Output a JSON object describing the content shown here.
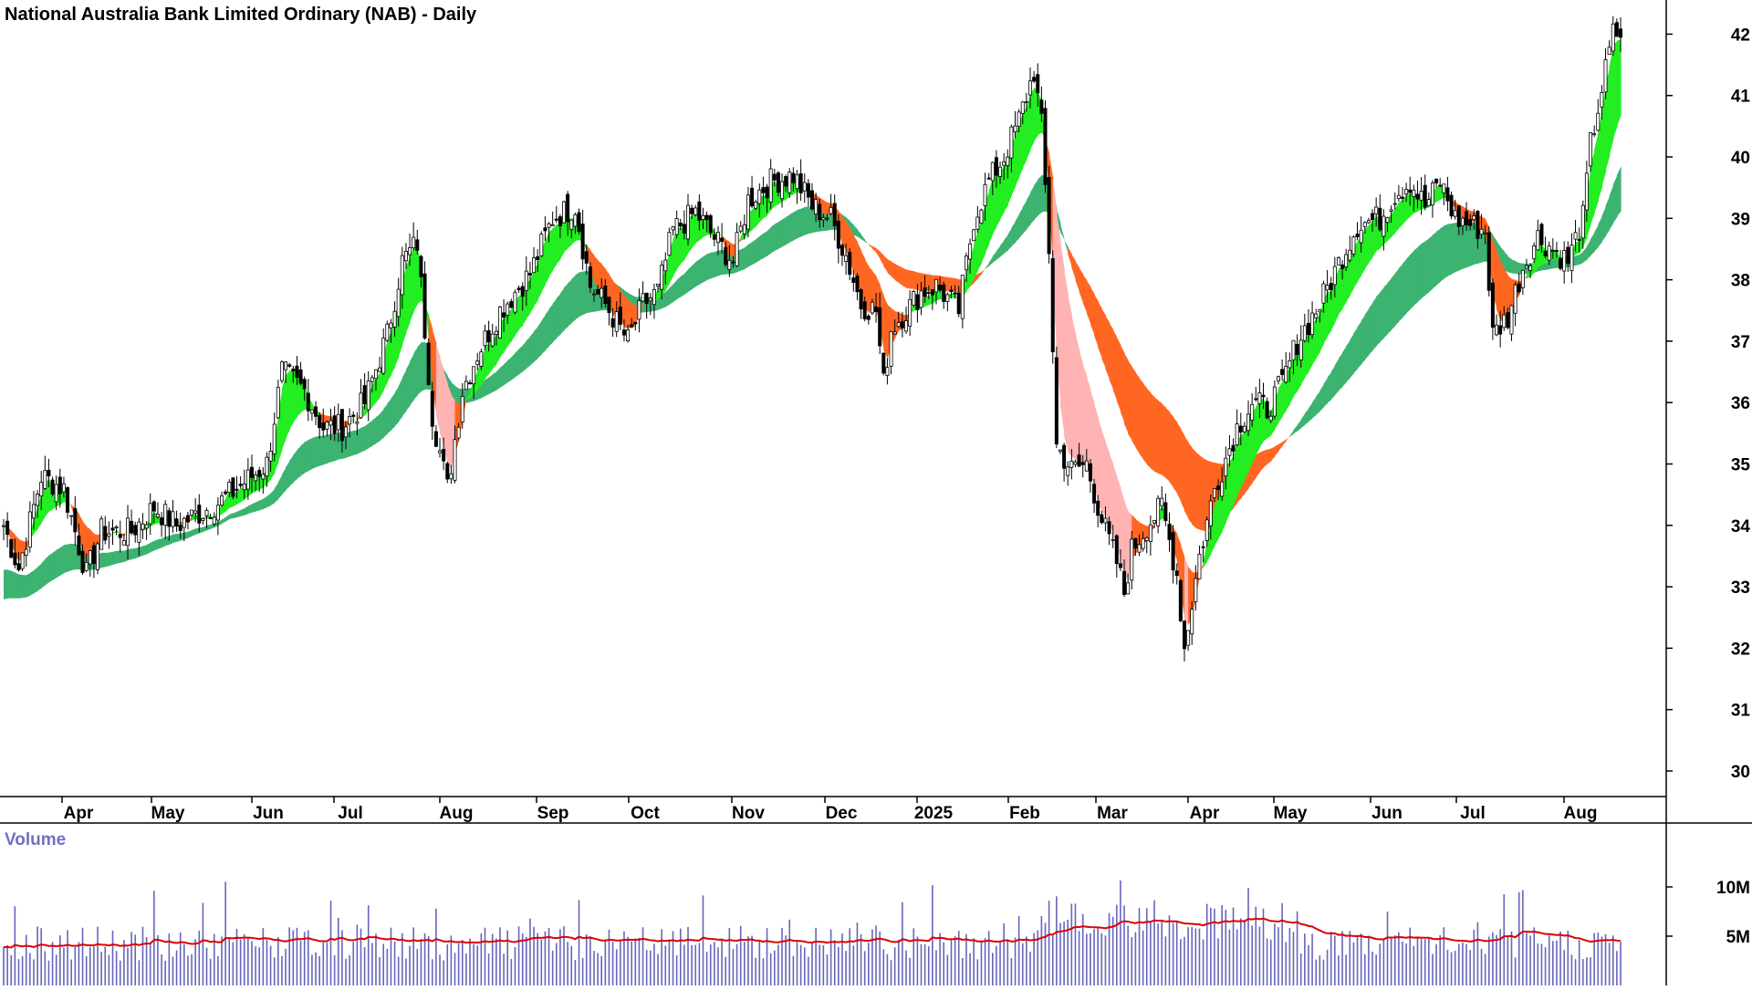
{
  "chart_title": "National Australia Bank Limited Ordinary (NAB) - Daily",
  "volume_label": "Volume",
  "colors": {
    "background": "#ffffff",
    "short_band_up": "#22ee22",
    "short_band_down": "#ff6622",
    "short_band_down_light": "#ffb3b3",
    "long_band_up": "#3cb371",
    "long_band_down": "#ff6622",
    "candle": "#000000",
    "volume_bars": "#6666bb",
    "volume_average": "#dd0000"
  },
  "chart_data": [
    {
      "type": "candlestick",
      "title": "National Australia Bank Limited Ordinary (NAB) - Daily",
      "ylim": [
        29.6,
        42.6
      ],
      "y_ticks": [
        30,
        31,
        32,
        33,
        34,
        35,
        36,
        37,
        38,
        39,
        40,
        41,
        42
      ],
      "x_ticks": [
        "Apr",
        "May",
        "Jun",
        "Jul",
        "Aug",
        "Sep",
        "Oct",
        "Nov",
        "Dec",
        "2025",
        "Feb",
        "Mar",
        "Apr",
        "May",
        "Jun",
        "Jul",
        "Aug"
      ],
      "grid": false,
      "price_path": [
        [
          0,
          34.0
        ],
        [
          4,
          33.3
        ],
        [
          10,
          34.8
        ],
        [
          16,
          34.6
        ],
        [
          22,
          33.2
        ],
        [
          26,
          33.9
        ],
        [
          34,
          33.9
        ],
        [
          40,
          34.3
        ],
        [
          46,
          34.0
        ],
        [
          52,
          34.2
        ],
        [
          58,
          34.4
        ],
        [
          62,
          34.6
        ],
        [
          70,
          35.0
        ],
        [
          74,
          36.5
        ],
        [
          80,
          36.2
        ],
        [
          85,
          35.6
        ],
        [
          90,
          35.6
        ],
        [
          96,
          36.0
        ],
        [
          102,
          37.1
        ],
        [
          106,
          38.3
        ],
        [
          110,
          38.6
        ],
        [
          114,
          35.8
        ],
        [
          118,
          34.6
        ],
        [
          122,
          36.2
        ],
        [
          126,
          36.8
        ],
        [
          132,
          37.5
        ],
        [
          140,
          38.1
        ],
        [
          146,
          39.0
        ],
        [
          152,
          39.2
        ],
        [
          156,
          37.9
        ],
        [
          160,
          37.6
        ],
        [
          166,
          37.0
        ],
        [
          170,
          37.6
        ],
        [
          174,
          37.8
        ],
        [
          178,
          38.8
        ],
        [
          184,
          39.1
        ],
        [
          190,
          38.6
        ],
        [
          194,
          38.3
        ],
        [
          198,
          39.3
        ],
        [
          204,
          39.6
        ],
        [
          210,
          39.7
        ],
        [
          215,
          39.2
        ],
        [
          220,
          39.0
        ],
        [
          224,
          38.4
        ],
        [
          228,
          37.6
        ],
        [
          232,
          37.5
        ],
        [
          234,
          36.3
        ],
        [
          236,
          37.2
        ],
        [
          240,
          37.5
        ],
        [
          244,
          37.8
        ],
        [
          248,
          37.9
        ],
        [
          254,
          37.5
        ],
        [
          258,
          39.0
        ],
        [
          262,
          39.6
        ],
        [
          266,
          40.0
        ],
        [
          270,
          40.6
        ],
        [
          274,
          41.4
        ],
        [
          276,
          40.5
        ],
        [
          278,
          38.5
        ],
        [
          280,
          35.3
        ],
        [
          284,
          34.9
        ],
        [
          288,
          35.0
        ],
        [
          292,
          34.1
        ],
        [
          296,
          33.4
        ],
        [
          298,
          32.9
        ],
        [
          300,
          33.6
        ],
        [
          304,
          34.0
        ],
        [
          308,
          34.3
        ],
        [
          312,
          33.2
        ],
        [
          314,
          32.0
        ],
        [
          318,
          33.5
        ],
        [
          322,
          34.6
        ],
        [
          328,
          35.6
        ],
        [
          332,
          36.0
        ],
        [
          336,
          35.9
        ],
        [
          340,
          36.3
        ],
        [
          344,
          37.0
        ],
        [
          350,
          37.6
        ],
        [
          356,
          38.4
        ],
        [
          360,
          38.9
        ],
        [
          366,
          39.0
        ],
        [
          370,
          39.4
        ],
        [
          374,
          39.6
        ],
        [
          378,
          39.2
        ],
        [
          382,
          39.6
        ],
        [
          386,
          39.0
        ],
        [
          390,
          38.9
        ],
        [
          394,
          38.8
        ],
        [
          396,
          37.1
        ],
        [
          400,
          37.4
        ],
        [
          404,
          38.2
        ],
        [
          408,
          38.7
        ],
        [
          412,
          38.5
        ],
        [
          416,
          38.3
        ],
        [
          420,
          39.0
        ],
        [
          422,
          40.2
        ],
        [
          426,
          41.4
        ],
        [
          428,
          42.0
        ]
      ],
      "volume_panel": {
        "label": "Volume",
        "y_ticks": [
          "5M",
          "10M"
        ],
        "ylim": [
          0,
          13
        ]
      }
    }
  ]
}
